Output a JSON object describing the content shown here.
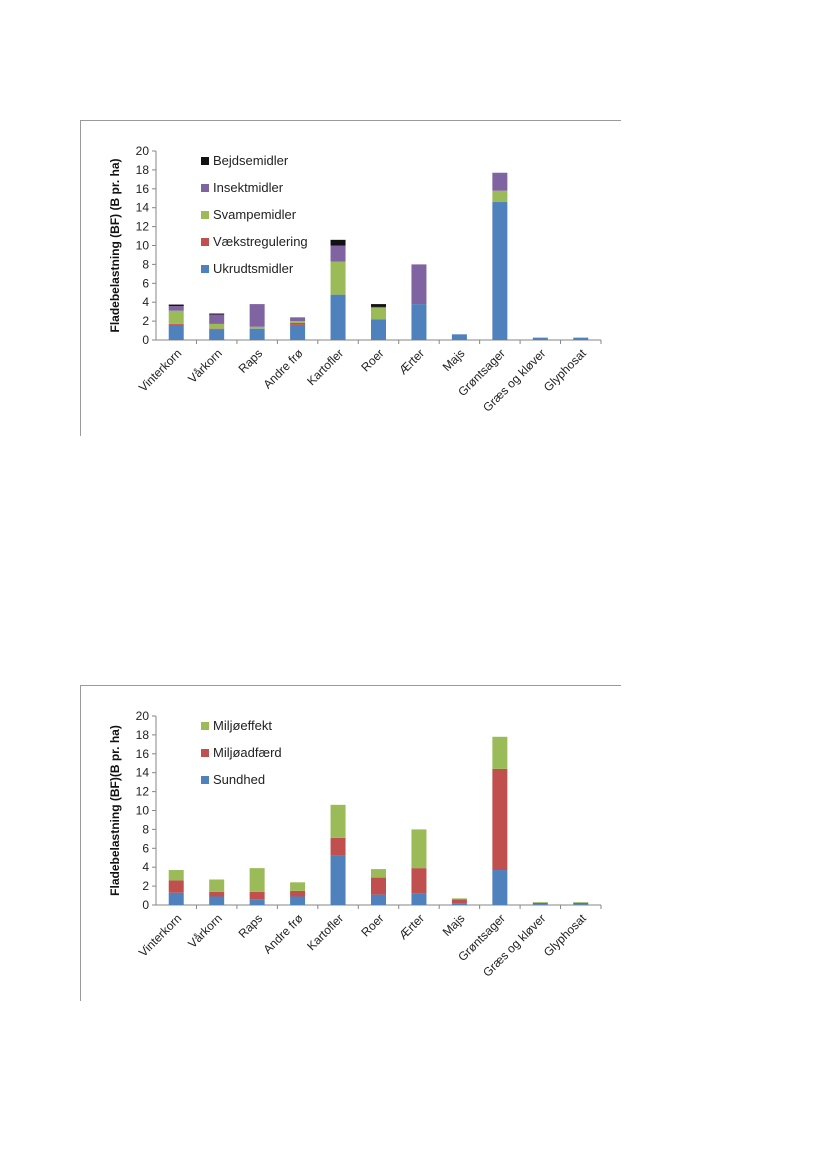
{
  "chart_data": [
    {
      "type": "bar",
      "stacked": true,
      "ylabel": "Fladebelastning (BF) (B pr. ha)",
      "ylim": [
        0,
        20
      ],
      "yticks": [
        0,
        2,
        4,
        6,
        8,
        10,
        12,
        14,
        16,
        18,
        20
      ],
      "categories": [
        "Vinterkorn",
        "Vårkorn",
        "Raps",
        "Andre frø",
        "Kartofler",
        "Roer",
        "Ærter",
        "Majs",
        "Grøntsager",
        "Græs og kløver",
        "Glyphosat"
      ],
      "series": [
        {
          "name": "Ukrudtsmidler",
          "color": "#4f81bd",
          "values": [
            1.6,
            1.1,
            1.2,
            1.6,
            4.8,
            2.2,
            3.8,
            0.6,
            14.6,
            0.25,
            0.25
          ]
        },
        {
          "name": "Vækstregulering",
          "color": "#c0504d",
          "values": [
            0.1,
            0.1,
            0.0,
            0.2,
            0.0,
            0.0,
            0.0,
            0.0,
            0.0,
            0.0,
            0.0
          ]
        },
        {
          "name": "Svampemidler",
          "color": "#9bbb59",
          "values": [
            1.4,
            0.5,
            0.2,
            0.2,
            3.5,
            1.2,
            0.0,
            0.0,
            1.2,
            0.0,
            0.0
          ]
        },
        {
          "name": "Insektmidler",
          "color": "#8064a2",
          "values": [
            0.5,
            1.0,
            2.4,
            0.4,
            1.7,
            0.1,
            4.2,
            0.0,
            1.9,
            0.0,
            0.0
          ]
        },
        {
          "name": "Bejdsemidler",
          "color": "#111111",
          "values": [
            0.15,
            0.1,
            0.0,
            0.0,
            0.6,
            0.3,
            0.0,
            0.0,
            0.0,
            0.0,
            0.0
          ]
        }
      ],
      "legend_order": [
        "Bejdsemidler",
        "Insektmidler",
        "Svampemidler",
        "Vækstregulering",
        "Ukrudtsmidler"
      ],
      "legend": "top-left"
    },
    {
      "type": "bar",
      "stacked": true,
      "ylabel": "Fladebelastning (BF)(B pr. ha)",
      "ylim": [
        0,
        20
      ],
      "yticks": [
        0,
        2,
        4,
        6,
        8,
        10,
        12,
        14,
        16,
        18,
        20
      ],
      "categories": [
        "Vinterkorn",
        "Vårkorn",
        "Raps",
        "Andre frø",
        "Kartofler",
        "Roer",
        "Ærter",
        "Majs",
        "Grøntsager",
        "Græs og kløver",
        "Glyphosat"
      ],
      "series": [
        {
          "name": "Sundhed",
          "color": "#4f81bd",
          "values": [
            1.3,
            0.9,
            0.6,
            0.9,
            5.2,
            1.1,
            1.2,
            0.2,
            3.7,
            0.1,
            0.1
          ]
        },
        {
          "name": "Miljøadfærd",
          "color": "#c0504d",
          "values": [
            1.3,
            0.5,
            0.8,
            0.6,
            1.9,
            1.8,
            2.7,
            0.4,
            10.7,
            0.15,
            0.15
          ]
        },
        {
          "name": "Miljøeffekt",
          "color": "#9bbb59",
          "values": [
            1.1,
            1.3,
            2.5,
            0.9,
            3.5,
            0.9,
            4.1,
            0.1,
            3.4,
            0.05,
            0.05
          ]
        }
      ],
      "legend_order": [
        "Miljøeffekt",
        "Miljøadfærd",
        "Sundhed"
      ],
      "legend": "top-left"
    }
  ]
}
